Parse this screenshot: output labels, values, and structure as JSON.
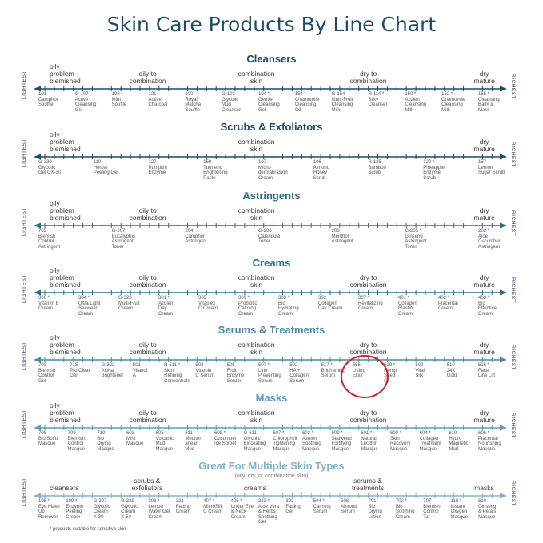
{
  "chart_data": {
    "type": "table",
    "title": "Skin Care Products By Line Chart",
    "end_left": "LIGHTEST",
    "end_right": "RICHEST",
    "footnote": "* products suitable for sensitive skin",
    "sections": [
      {
        "name": "Cleansers",
        "color": "#1f4a67",
        "types": [
          "oily\nproblem\nblemished",
          "oily to\ncombination",
          "combination\nskin",
          "dry to\ncombination",
          "dry\nmature"
        ],
        "products": [
          "101\nCamphor\nSouffle",
          "G-107\nActive\nCleansing\nGel",
          "102 *\nMint\nSouffle",
          "121\nActive\nCharcoal",
          "100\nRoyal\nMatcha\nSouffle",
          "G-103\nGlycolic\nMud\nCleanser",
          "104 *\nGentle\nCleansing\nGel",
          "154 *\nChamomile\nCleansing\nOil",
          "G-154\nMulti-Fruit\nCleansing\nMilk",
          "R-114 *\nSilky\nCleanser",
          "150 *\nAzulen\nCleansing\nMilk",
          "152 *\nChamomile\nCleansing\nMilk",
          "155 *\nCleansing\nBalm &\nMask"
        ]
      },
      {
        "name": "Scrubs & Exfoliators",
        "color": "#1f4a67",
        "types": [
          "oily\nproblem\nblemished",
          "",
          "combination\nskin",
          "",
          "dry\nmature"
        ],
        "products": [
          "G-330\nGlycolic\nGel GX-30",
          "110\nHerbal\nPeeling Gel",
          "127\nPumpkin\nEnzyme",
          "159\nTurmeric\nBrightening\nPaste",
          "107\nMicro-\ndermabrasion\nCream",
          "106\nAlmond\nHoney\nScrub",
          "R-125\nBamboo\nScrub",
          "120 *\nPineapple\nEnzyme\nScrub",
          "157\nLemon\nSugar Scrub"
        ]
      },
      {
        "name": "Astringents",
        "color": "#2d6a86",
        "types": [
          "oily\nproblem\nblemished",
          "oily to\ncombination",
          "combination\nskin",
          "",
          "dry\nmature"
        ],
        "products": [
          "705\nBlemish\nControl\nAstringent",
          "G-207\nEucalyptus\nAstringent\nToner",
          "204\nCamphor\nAstringent",
          "G-206\nCalendula\nToner",
          "203\nMenthol\nAstringent",
          "G-205 *\nGinseng\nAstringent\nToner",
          "202 *\nAloe\nCucumber\nAstringent"
        ]
      },
      {
        "name": "Creams",
        "color": "#2d6a86",
        "types": [
          "oily\nproblem\nblemished",
          "oily to\ncombination",
          "combination\nskin",
          "dry to\ncombination",
          "dry\nmature"
        ],
        "products": [
          "300 *\nVitamin B\nCream",
          "304 *\nUltra Light\nSeaweed\nCream",
          "G-323\nMulti-Fruit\nCream",
          "301 *\nAzulen\nDay\nCream",
          "305\nVitaplex\nC Cream",
          "309 *\nProbiotic\nCalming\nCream",
          "303 *\nBio\nHydrating\nCream",
          "302\nCollagen\nDay Cream",
          "307 *\nRevitalizing\nCream",
          "401 *\nCollagen\nElastin\nCream",
          "402 *\nPlacental\nCream",
          "403 *\nBio\nEffective\nCream"
        ]
      },
      {
        "name": "Serums & Treatments",
        "color": "#4a8aa8",
        "types": [
          "oily\nproblem\nblemished",
          "oily to\ncombination",
          "combination\nskin",
          "dry to\ncombination",
          "dry\nmature"
        ],
        "products": [
          "703\nBlemish\nControl\nGel",
          "715\nPro Clear\nGel",
          "G-322\nAlpha\nBrightener",
          "501\nVitanol\nA",
          "R-511 *\nSkin\nRefining\nConcentrate",
          "503\nVitamin\nC Serum",
          "505\nFruit\nEnzyme\nSerum",
          "507 *\nLine\nPreventing\nSerum",
          "502\nHA +\nCollagen\nSerum",
          "517 *\nBrightening\nSerum",
          "555\nLifting\nElixir",
          "529 *\nHemp\nSeed\nOil",
          "509\nVital\nSilk",
          "510\n24K\nGold",
          "515 *\nFace\nLine Lift"
        ]
      },
      {
        "name": "Masks",
        "color": "#5b9bbd",
        "types": [
          "oily\nproblem\nblemished",
          "oily to\ncombination",
          "combination\nskin",
          "dry to\ncombination",
          "dry\nmature"
        ],
        "products": [
          "708\nBio Sulfur\nMasque",
          "709\nBlemish\nControl\nMasque",
          "710\nBio\nDrying\nMasque",
          "603\nMint\nMasque",
          "605 *\nVolcanic\nMud\nMasque",
          "611\nMediter-\nanean\nMud",
          "608 *\nCucumber\nIce Sorbet",
          "G-611\nGlycolic\nExfoliating\nMasque",
          "607 *\nChlorophyll\nTightening\nMasque",
          "602 *\nAzulen\nSoothing\nMasque",
          "609 *\nSeaweed\nFortifying\nMasque",
          "601 *\nNatural\nLecithin\nMasque",
          "600 *\nSkin\nRecovery\nMasque",
          "604 *\nCollagen\nTreatment\nMasque",
          "610\nHydro\nMagnetic\nMud",
          "606 *\nPlacental\nNourishing\nMasque"
        ]
      },
      {
        "name": "Great For Multiple Skin Types",
        "subtitle": "(oily, dry, or combination skin)",
        "color": "#7fb2cc",
        "types": [
          "cleansers",
          "scrubs &\nexfoliators",
          "creams",
          "serums &\ntreatments",
          "masks"
        ],
        "products": [
          "105 *\nEye Make\nUp\nRemover",
          "109 *\nEnzyme\nPeeling\nCream",
          "G-327\nGlycolic\nCream\nX-30",
          "G-329\nGlycolic\nCream\nX-50",
          "308 *\nLemon\nWater Gel\nCream",
          "321\nFading\nCream",
          "407 *\nMicroSilk\nC Cream",
          "408 *\nUnder Eye\n& Neck\nCream",
          "323 *\nAloe Vera\n& Herbs\nSoothing\nGel",
          "322\nFading\nGel",
          "504 *\nCalming\nSerum",
          "508\nAlmond\nSerum",
          "701\nBio\nDrying\nLotion",
          "702 *\nBio\nSoothing\nCream",
          "707\nBlemish\nControl\nTar",
          "115 *\nInstant\nOxygen\nMasque",
          "610\nGinseng\n& Petals\nMasque"
        ]
      }
    ]
  }
}
